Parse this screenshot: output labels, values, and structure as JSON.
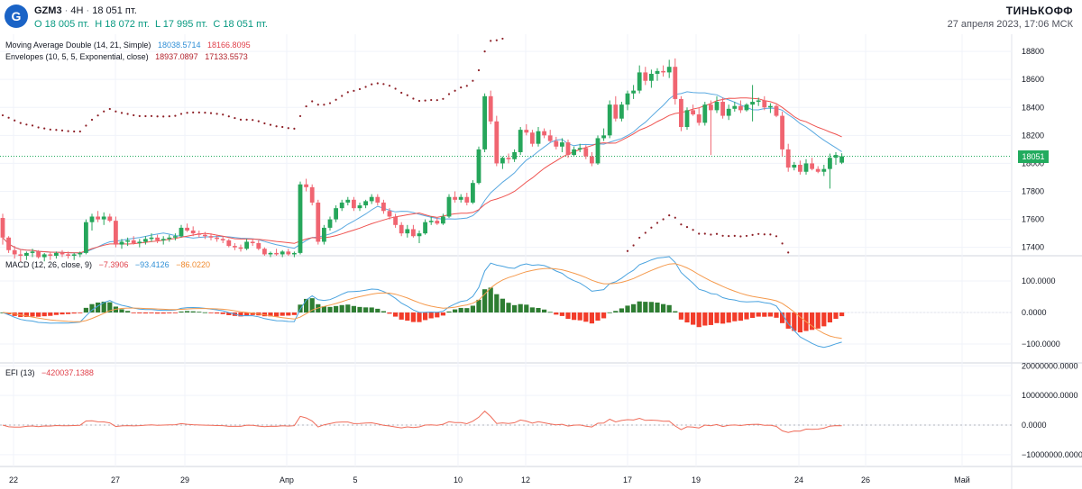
{
  "header": {
    "symbol": "GZM3",
    "timeframe": "4H",
    "last": "18 051 пт.",
    "open": "O 18 005 пт.",
    "high": "H 18 072 пт.",
    "low": "L 17 995 пт.",
    "close": "C 18 051 пт.",
    "brand": "ТИНЬКОФФ",
    "timestamp": "27 апреля 2023, 17:06 МСК"
  },
  "legends": {
    "ma": {
      "label": "Moving Average Double (14, 21, Simple)",
      "v1": "18038.5714",
      "v2": "18166.8095"
    },
    "env": {
      "label": "Envelopes (10, 5, 5, Exponential, close)",
      "v1": "18937.0897",
      "v2": "17133.5573"
    },
    "macd": {
      "label": "MACD (12, 26, close, 9)",
      "v1": "−7.3906",
      "v2": "−93.4126",
      "v3": "−86.0220"
    },
    "efi": {
      "label": "EFI (13)",
      "v1": "−420037.1388"
    }
  },
  "price_tag": "18051",
  "colors": {
    "up": "#26a65b",
    "down": "#f06571",
    "ma_fast": "#5aa9e0",
    "ma_slow": "#ef5350",
    "macd_line": "#4aa3df",
    "signal": "#f59a4d",
    "hist_up": "#2e7d32",
    "hist_down": "#f23c2a",
    "efi": "#ef6c5a",
    "env_dots": "#8d1f26"
  },
  "chart_data": [
    {
      "type": "candlestick",
      "title": "GZM3 4H",
      "y_ticks": [
        "18800",
        "18600",
        "18400",
        "18200",
        "18000",
        "17800",
        "17600",
        "17400"
      ],
      "ylim": [
        17340,
        18910
      ],
      "x_ticks": [
        "22",
        "27",
        "29",
        "Апр",
        "5",
        "10",
        "12",
        "17",
        "19",
        "24",
        "26",
        "Май"
      ],
      "ohlc": [
        [
          17610,
          17640,
          17420,
          17470
        ],
        [
          17470,
          17480,
          17360,
          17380
        ],
        [
          17380,
          17410,
          17320,
          17350
        ],
        [
          17350,
          17380,
          17300,
          17340
        ],
        [
          17340,
          17370,
          17310,
          17360
        ],
        [
          17360,
          17390,
          17330,
          17370
        ],
        [
          17370,
          17380,
          17320,
          17330
        ],
        [
          17330,
          17360,
          17300,
          17350
        ],
        [
          17350,
          17370,
          17310,
          17340
        ],
        [
          17340,
          17370,
          17320,
          17360
        ],
        [
          17360,
          17380,
          17330,
          17350
        ],
        [
          17350,
          17370,
          17320,
          17340
        ],
        [
          17340,
          17360,
          17310,
          17350
        ],
        [
          17350,
          17370,
          17330,
          17360
        ],
        [
          17360,
          17600,
          17350,
          17580
        ],
        [
          17580,
          17640,
          17520,
          17620
        ],
        [
          17620,
          17660,
          17580,
          17600
        ],
        [
          17600,
          17650,
          17560,
          17620
        ],
        [
          17620,
          17640,
          17580,
          17590
        ],
        [
          17590,
          17620,
          17400,
          17420
        ],
        [
          17420,
          17460,
          17390,
          17440
        ],
        [
          17440,
          17470,
          17410,
          17450
        ],
        [
          17450,
          17480,
          17420,
          17430
        ],
        [
          17430,
          17460,
          17400,
          17440
        ],
        [
          17440,
          17480,
          17420,
          17460
        ],
        [
          17460,
          17500,
          17440,
          17470
        ],
        [
          17470,
          17490,
          17430,
          17450
        ],
        [
          17450,
          17480,
          17420,
          17460
        ],
        [
          17460,
          17490,
          17440,
          17470
        ],
        [
          17470,
          17500,
          17450,
          17480
        ],
        [
          17480,
          17560,
          17470,
          17540
        ],
        [
          17540,
          17570,
          17510,
          17520
        ],
        [
          17520,
          17550,
          17480,
          17500
        ],
        [
          17500,
          17520,
          17470,
          17490
        ],
        [
          17490,
          17510,
          17460,
          17480
        ],
        [
          17480,
          17500,
          17450,
          17470
        ],
        [
          17470,
          17490,
          17440,
          17460
        ],
        [
          17460,
          17480,
          17430,
          17450
        ],
        [
          17450,
          17460,
          17400,
          17410
        ],
        [
          17410,
          17430,
          17380,
          17400
        ],
        [
          17400,
          17420,
          17370,
          17390
        ],
        [
          17390,
          17460,
          17380,
          17440
        ],
        [
          17440,
          17460,
          17410,
          17430
        ],
        [
          17430,
          17450,
          17380,
          17390
        ],
        [
          17390,
          17400,
          17340,
          17350
        ],
        [
          17350,
          17370,
          17330,
          17360
        ],
        [
          17360,
          17390,
          17340,
          17350
        ],
        [
          17350,
          17380,
          17330,
          17370
        ],
        [
          17370,
          17390,
          17340,
          17350
        ],
        [
          17350,
          17370,
          17330,
          17360
        ],
        [
          17360,
          17870,
          17350,
          17850
        ],
        [
          17850,
          17890,
          17800,
          17830
        ],
        [
          17830,
          17850,
          17700,
          17720
        ],
        [
          17720,
          17740,
          17420,
          17440
        ],
        [
          17440,
          17560,
          17420,
          17540
        ],
        [
          17540,
          17620,
          17520,
          17600
        ],
        [
          17600,
          17700,
          17580,
          17680
        ],
        [
          17680,
          17740,
          17660,
          17720
        ],
        [
          17720,
          17760,
          17700,
          17740
        ],
        [
          17740,
          17760,
          17660,
          17680
        ],
        [
          17680,
          17720,
          17660,
          17700
        ],
        [
          17700,
          17740,
          17680,
          17730
        ],
        [
          17730,
          17780,
          17710,
          17760
        ],
        [
          17760,
          17780,
          17700,
          17720
        ],
        [
          17720,
          17740,
          17640,
          17660
        ],
        [
          17660,
          17680,
          17600,
          17620
        ],
        [
          17620,
          17640,
          17540,
          17560
        ],
        [
          17560,
          17580,
          17480,
          17500
        ],
        [
          17500,
          17560,
          17470,
          17530
        ],
        [
          17530,
          17560,
          17470,
          17480
        ],
        [
          17480,
          17520,
          17430,
          17500
        ],
        [
          17500,
          17600,
          17490,
          17580
        ],
        [
          17580,
          17620,
          17560,
          17590
        ],
        [
          17590,
          17610,
          17560,
          17570
        ],
        [
          17570,
          17640,
          17560,
          17620
        ],
        [
          17620,
          17780,
          17610,
          17760
        ],
        [
          17760,
          17800,
          17720,
          17740
        ],
        [
          17740,
          17780,
          17720,
          17760
        ],
        [
          17760,
          17790,
          17700,
          17720
        ],
        [
          17720,
          17880,
          17710,
          17860
        ],
        [
          17860,
          18120,
          17850,
          18100
        ],
        [
          18100,
          18500,
          18080,
          18480
        ],
        [
          18480,
          18520,
          18280,
          18300
        ],
        [
          18300,
          18340,
          17980,
          18000
        ],
        [
          18000,
          18050,
          17960,
          18040
        ],
        [
          18040,
          18070,
          18000,
          18030
        ],
        [
          18030,
          18100,
          18010,
          18080
        ],
        [
          18080,
          18260,
          18060,
          18240
        ],
        [
          18240,
          18280,
          18200,
          18220
        ],
        [
          18220,
          18240,
          18120,
          18140
        ],
        [
          18140,
          18260,
          18120,
          18230
        ],
        [
          18230,
          18250,
          18180,
          18200
        ],
        [
          18200,
          18240,
          18150,
          18160
        ],
        [
          18160,
          18190,
          18100,
          18120
        ],
        [
          18120,
          18180,
          18080,
          18150
        ],
        [
          18150,
          18170,
          18040,
          18060
        ],
        [
          18060,
          18120,
          18050,
          18100
        ],
        [
          18100,
          18140,
          18080,
          18110
        ],
        [
          18110,
          18130,
          18030,
          18050
        ],
        [
          18050,
          18080,
          17980,
          18000
        ],
        [
          18000,
          18200,
          17990,
          18180
        ],
        [
          18180,
          18250,
          18160,
          18200
        ],
        [
          18200,
          18450,
          18180,
          18420
        ],
        [
          18420,
          18480,
          18300,
          18320
        ],
        [
          18320,
          18440,
          18300,
          18420
        ],
        [
          18420,
          18520,
          18380,
          18500
        ],
        [
          18500,
          18560,
          18460,
          18520
        ],
        [
          18520,
          18700,
          18500,
          18650
        ],
        [
          18650,
          18690,
          18560,
          18590
        ],
        [
          18590,
          18670,
          18540,
          18640
        ],
        [
          18640,
          18680,
          18590,
          18660
        ],
        [
          18660,
          18700,
          18620,
          18650
        ],
        [
          18650,
          18740,
          18610,
          18690
        ],
        [
          18690,
          18750,
          18420,
          18460
        ],
        [
          18460,
          18480,
          18230,
          18260
        ],
        [
          18260,
          18400,
          18240,
          18380
        ],
        [
          18380,
          18420,
          18340,
          18350
        ],
        [
          18350,
          18400,
          18270,
          18290
        ],
        [
          18290,
          18440,
          18270,
          18420
        ],
        [
          18420,
          18450,
          18060,
          18380
        ],
        [
          18380,
          18480,
          18360,
          18440
        ],
        [
          18440,
          18470,
          18320,
          18340
        ],
        [
          18340,
          18420,
          18310,
          18390
        ],
        [
          18390,
          18440,
          18370,
          18410
        ],
        [
          18410,
          18450,
          18360,
          18380
        ],
        [
          18380,
          18430,
          18370,
          18420
        ],
        [
          18420,
          18560,
          18300,
          18440
        ],
        [
          18440,
          18470,
          18410,
          18450
        ],
        [
          18450,
          18480,
          18380,
          18400
        ],
        [
          18400,
          18430,
          18360,
          18410
        ],
        [
          18410,
          18420,
          18330,
          18340
        ],
        [
          18340,
          18370,
          18050,
          18100
        ],
        [
          18100,
          18140,
          17940,
          17970
        ],
        [
          17970,
          18010,
          17950,
          17990
        ],
        [
          17990,
          18020,
          17920,
          17940
        ],
        [
          17940,
          18030,
          17920,
          18000
        ],
        [
          18000,
          18040,
          17950,
          17960
        ],
        [
          17960,
          17980,
          17930,
          17940
        ],
        [
          17940,
          17990,
          17910,
          17960
        ],
        [
          17960,
          18070,
          17820,
          18040
        ],
        [
          18040,
          18080,
          17990,
          18060
        ],
        [
          18005,
          18072,
          17995,
          18051
        ]
      ],
      "ma14_end": 18038.5714,
      "ma21_end": 18166.8095,
      "env_upper_end": 18937.0897,
      "env_lower_end": 17133.5573
    },
    {
      "type": "bar",
      "title": "MACD (12, 26, close, 9)",
      "y_ticks": [
        "100.0000",
        "0.0000",
        "−100.0000"
      ],
      "ylim": [
        -160,
        180
      ],
      "macd_end": -93.4126,
      "signal_end": -86.022,
      "histogram_end": -7.3906
    },
    {
      "type": "line",
      "title": "EFI (13)",
      "y_ticks": [
        "20000000.0000",
        "10000000.0000",
        "0.0000",
        "−10000000.0000"
      ],
      "ylim": [
        -14000000,
        21000000
      ],
      "efi_end": -420037.1388
    }
  ]
}
